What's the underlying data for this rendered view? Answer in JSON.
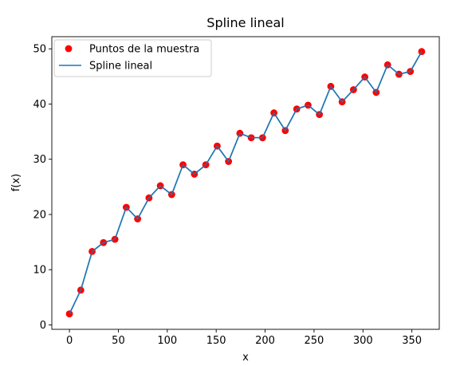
{
  "chart_data": {
    "type": "line",
    "title": "Spline lineal",
    "xlabel": "x",
    "ylabel": "f(x)",
    "xlim": [
      -18,
      378
    ],
    "ylim": [
      -0.8,
      52.2
    ],
    "x_ticks": [
      0,
      50,
      100,
      150,
      200,
      250,
      300,
      350
    ],
    "y_ticks": [
      0,
      10,
      20,
      30,
      40,
      50
    ],
    "grid": false,
    "legend_position": "upper-left",
    "colors": {
      "points": "#ff0000",
      "line": "#1f77b4"
    },
    "series": [
      {
        "name": "Puntos de la muestra",
        "kind": "scatter",
        "x": [
          0,
          11.6,
          23.2,
          34.8,
          46.5,
          58.1,
          69.7,
          81.3,
          92.9,
          104.5,
          116.1,
          127.7,
          139.4,
          151.0,
          162.6,
          174.2,
          185.8,
          197.4,
          209.0,
          220.6,
          232.3,
          243.9,
          255.5,
          267.1,
          278.7,
          290.3,
          301.9,
          313.5,
          325.2,
          336.8,
          348.4,
          360
        ],
        "y": [
          2.0,
          6.3,
          13.3,
          14.9,
          15.5,
          21.3,
          19.2,
          23.0,
          25.2,
          23.6,
          29.0,
          27.3,
          29.0,
          32.4,
          29.6,
          34.7,
          33.9,
          33.9,
          38.4,
          35.2,
          39.1,
          39.8,
          38.1,
          43.2,
          40.4,
          42.6,
          44.9,
          42.1,
          47.1,
          45.4,
          45.9,
          49.5
        ]
      },
      {
        "name": "Spline lineal",
        "kind": "line"
      }
    ]
  }
}
